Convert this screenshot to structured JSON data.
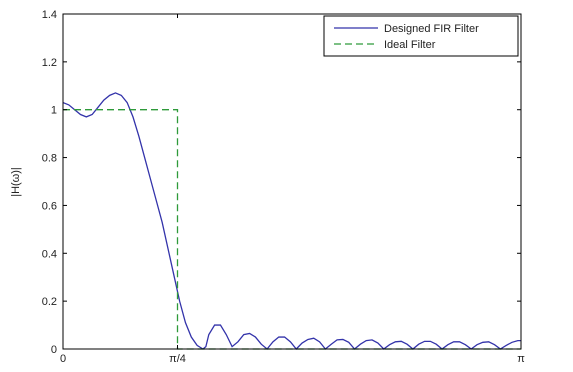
{
  "chart_data": {
    "type": "line",
    "title": "",
    "xlabel": "",
    "ylabel": "|H(ω)|",
    "xlim": [
      0,
      3.14159
    ],
    "ylim": [
      0,
      1.4
    ],
    "grid": false,
    "legend_position": "top-right",
    "x_ticks": [
      {
        "value": 0,
        "label": "0"
      },
      {
        "value": 0.7854,
        "label": "π/4"
      },
      {
        "value": 3.14159,
        "label": "π"
      }
    ],
    "y_ticks": [
      {
        "value": 0,
        "label": "0"
      },
      {
        "value": 0.2,
        "label": "0.2"
      },
      {
        "value": 0.4,
        "label": "0.4"
      },
      {
        "value": 0.6,
        "label": "0.6"
      },
      {
        "value": 0.8,
        "label": "0.8"
      },
      {
        "value": 1.0,
        "label": "1"
      },
      {
        "value": 1.2,
        "label": "1.2"
      },
      {
        "value": 1.4,
        "label": "1.4"
      }
    ],
    "series": [
      {
        "name": "Designed FIR Filter",
        "color": "#3333aa",
        "style": "solid",
        "x": [
          0,
          0.04,
          0.08,
          0.12,
          0.16,
          0.2,
          0.24,
          0.28,
          0.32,
          0.36,
          0.4,
          0.44,
          0.48,
          0.52,
          0.56,
          0.6,
          0.64,
          0.68,
          0.72,
          0.76,
          0.8,
          0.84,
          0.88,
          0.92,
          0.96,
          0.98,
          1.0,
          1.04,
          1.08,
          1.12,
          1.16,
          1.2,
          1.24,
          1.28,
          1.32,
          1.36,
          1.4,
          1.44,
          1.48,
          1.52,
          1.56,
          1.6,
          1.64,
          1.68,
          1.72,
          1.76,
          1.8,
          1.84,
          1.88,
          1.92,
          1.96,
          2.0,
          2.04,
          2.08,
          2.12,
          2.16,
          2.2,
          2.24,
          2.28,
          2.32,
          2.36,
          2.4,
          2.44,
          2.48,
          2.52,
          2.56,
          2.6,
          2.64,
          2.68,
          2.72,
          2.76,
          2.8,
          2.84,
          2.88,
          2.92,
          2.96,
          3.0,
          3.04,
          3.08,
          3.12,
          3.14
        ],
        "values": [
          1.03,
          1.02,
          1.0,
          0.98,
          0.97,
          0.98,
          1.01,
          1.04,
          1.06,
          1.07,
          1.06,
          1.03,
          0.97,
          0.89,
          0.8,
          0.71,
          0.62,
          0.53,
          0.42,
          0.31,
          0.2,
          0.11,
          0.05,
          0.015,
          0.0,
          0.01,
          0.06,
          0.1,
          0.1,
          0.06,
          0.01,
          0.03,
          0.06,
          0.065,
          0.05,
          0.02,
          0.0,
          0.03,
          0.05,
          0.05,
          0.03,
          0.0,
          0.025,
          0.04,
          0.045,
          0.03,
          0.0,
          0.02,
          0.038,
          0.04,
          0.028,
          0.0,
          0.02,
          0.035,
          0.038,
          0.025,
          0.0,
          0.018,
          0.03,
          0.032,
          0.02,
          0.0,
          0.02,
          0.032,
          0.032,
          0.02,
          0.0,
          0.018,
          0.03,
          0.03,
          0.018,
          0.0,
          0.018,
          0.028,
          0.03,
          0.018,
          0.0,
          0.015,
          0.028,
          0.035,
          0.035
        ]
      },
      {
        "name": "Ideal Filter",
        "color": "#2e9a3a",
        "style": "dashed",
        "x": [
          0,
          0.7854,
          0.7854,
          3.14159
        ],
        "values": [
          1.0,
          1.0,
          0.0,
          0.0
        ]
      }
    ]
  }
}
